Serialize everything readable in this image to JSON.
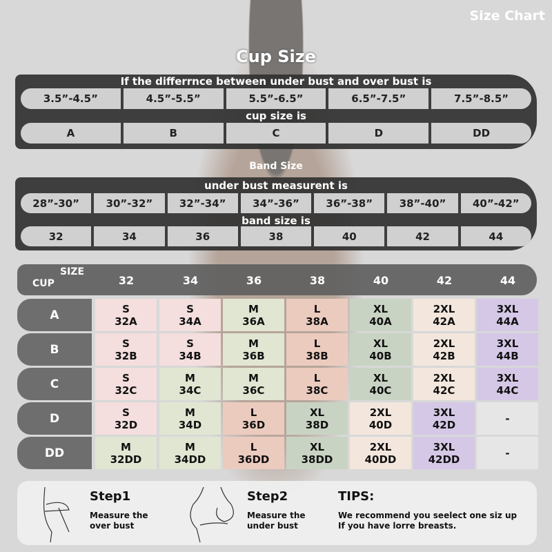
{
  "title": "Size Chart",
  "cup": {
    "title": "Cup Size",
    "header": "If the differrnce between under bust and over bust is",
    "ranges": [
      "3.5”-4.5”",
      "4.5”-5.5”",
      "5.5”-6.5”",
      "6.5”-7.5”",
      "7.5”-8.5”"
    ],
    "sub": "cup size is",
    "cups": [
      "A",
      "B",
      "C",
      "D",
      "DD"
    ]
  },
  "band": {
    "title": "Band Size",
    "header": "under bust measurent is",
    "ranges": [
      "28”-30”",
      "30”-32”",
      "32”-34”",
      "34”-36”",
      "36”-38”",
      "38”-40”",
      "40”-42”"
    ],
    "sub": "band size is",
    "bands": [
      "32",
      "34",
      "36",
      "38",
      "40",
      "42",
      "44"
    ]
  },
  "table": {
    "size_label": "SIZE",
    "cup_label": "CUP",
    "columns": [
      "32",
      "34",
      "36",
      "38",
      "40",
      "42",
      "44"
    ],
    "rows": [
      {
        "cup": "A",
        "cells": [
          [
            "S",
            "32A"
          ],
          [
            "S",
            "34A"
          ],
          [
            "M",
            "36A"
          ],
          [
            "L",
            "38A"
          ],
          [
            "XL",
            "40A"
          ],
          [
            "2XL",
            "42A"
          ],
          [
            "3XL",
            "44A"
          ]
        ]
      },
      {
        "cup": "B",
        "cells": [
          [
            "S",
            "32B"
          ],
          [
            "S",
            "34B"
          ],
          [
            "M",
            "36B"
          ],
          [
            "L",
            "38B"
          ],
          [
            "XL",
            "40B"
          ],
          [
            "2XL",
            "42B"
          ],
          [
            "3XL",
            "44B"
          ]
        ]
      },
      {
        "cup": "C",
        "cells": [
          [
            "S",
            "32C"
          ],
          [
            "M",
            "34C"
          ],
          [
            "M",
            "36C"
          ],
          [
            "L",
            "38C"
          ],
          [
            "XL",
            "40C"
          ],
          [
            "2XL",
            "42C"
          ],
          [
            "3XL",
            "44C"
          ]
        ]
      },
      {
        "cup": "D",
        "cells": [
          [
            "S",
            "32D"
          ],
          [
            "M",
            "34D"
          ],
          [
            "L",
            "36D"
          ],
          [
            "XL",
            "38D"
          ],
          [
            "2XL",
            "40D"
          ],
          [
            "3XL",
            "42D"
          ],
          [
            "-",
            ""
          ]
        ]
      },
      {
        "cup": "DD",
        "cells": [
          [
            "M",
            "32DD"
          ],
          [
            "M",
            "34DD"
          ],
          [
            "L",
            "36DD"
          ],
          [
            "XL",
            "38DD"
          ],
          [
            "2XL",
            "40DD"
          ],
          [
            "3XL",
            "42DD"
          ],
          [
            "-",
            ""
          ]
        ]
      }
    ]
  },
  "size_colors": {
    "S": "#f4dede",
    "M": "#e0e6d2",
    "L": "#eccbbf",
    "XL": "#c9d3c3",
    "2XL": "#f3e6dc",
    "3XL": "#d5c8e6",
    "-": "#e6e6e6"
  },
  "steps": [
    {
      "title": "Step1",
      "desc": [
        "Measure the",
        "over bust"
      ]
    },
    {
      "title": "Step2",
      "desc": [
        "Measure the",
        "under bust"
      ]
    }
  ],
  "tips": {
    "title": "TIPS:",
    "lines": [
      "We recommend you seelect one siz up",
      "If you have lorre breasts."
    ]
  }
}
